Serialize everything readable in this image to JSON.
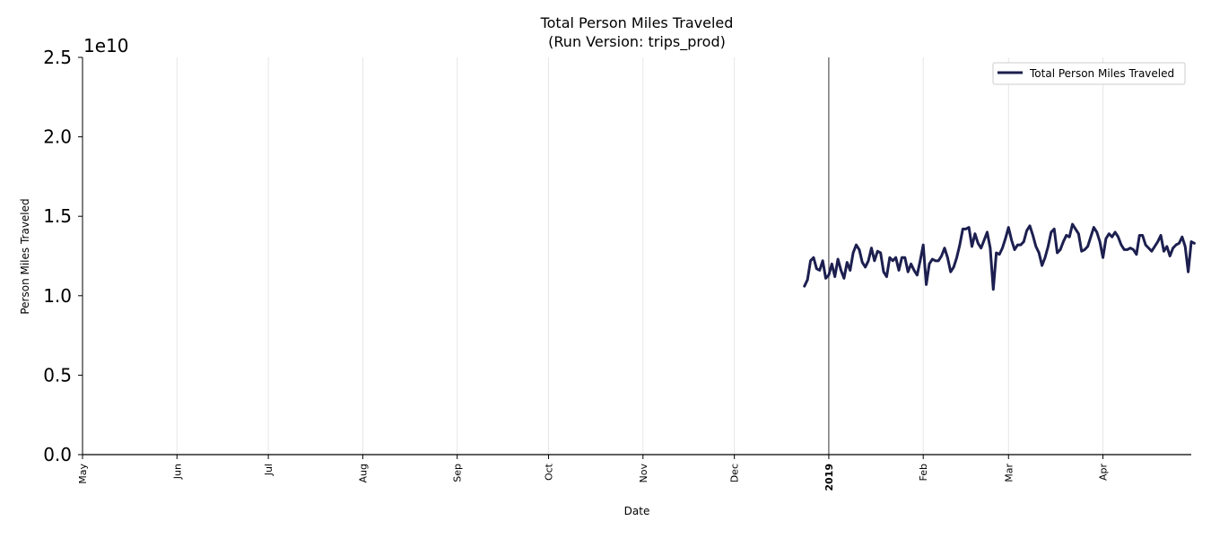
{
  "chart_data": {
    "type": "line",
    "title": "Total Person Miles Traveled",
    "subtitle": "(Run Version: trips_prod)",
    "xlabel": "Date",
    "ylabel": "Person Miles Traveled",
    "y_offset_label": "1e10",
    "y_scale": 10000000000,
    "ylim": [
      0,
      2.5
    ],
    "yticks": [
      "0.0",
      "0.5",
      "1.0",
      "1.5",
      "2.0",
      "2.5"
    ],
    "xlim": [
      "2018-05-01",
      "2019-04-30"
    ],
    "xticks": [
      {
        "label": "May",
        "date": "2018-05-01",
        "bold": false
      },
      {
        "label": "Jun",
        "date": "2018-06-01",
        "bold": false
      },
      {
        "label": "Jul",
        "date": "2018-07-01",
        "bold": false
      },
      {
        "label": "Aug",
        "date": "2018-08-01",
        "bold": false
      },
      {
        "label": "Sep",
        "date": "2018-09-01",
        "bold": false
      },
      {
        "label": "Oct",
        "date": "2018-10-01",
        "bold": false
      },
      {
        "label": "Nov",
        "date": "2018-11-01",
        "bold": false
      },
      {
        "label": "Dec",
        "date": "2018-12-01",
        "bold": false
      },
      {
        "label": "2019",
        "date": "2019-01-01",
        "bold": true
      },
      {
        "label": "Feb",
        "date": "2019-02-01",
        "bold": false
      },
      {
        "label": "Mar",
        "date": "2019-03-01",
        "bold": false
      },
      {
        "label": "Apr",
        "date": "2019-04-01",
        "bold": false
      }
    ],
    "grid": "vertical",
    "year_marker": "2019-01-01",
    "legend_position": "top-right",
    "color": "#1c1f4f",
    "series": [
      {
        "name": "Total Person Miles Traveled",
        "start_date": "2018-12-24",
        "values": [
          1.06,
          1.1,
          1.22,
          1.24,
          1.17,
          1.16,
          1.22,
          1.11,
          1.13,
          1.2,
          1.12,
          1.23,
          1.16,
          1.11,
          1.21,
          1.16,
          1.27,
          1.32,
          1.29,
          1.21,
          1.18,
          1.22,
          1.3,
          1.22,
          1.28,
          1.27,
          1.15,
          1.12,
          1.24,
          1.22,
          1.24,
          1.16,
          1.24,
          1.24,
          1.15,
          1.2,
          1.16,
          1.13,
          1.22,
          1.32,
          1.07,
          1.2,
          1.23,
          1.22,
          1.22,
          1.25,
          1.3,
          1.24,
          1.15,
          1.18,
          1.24,
          1.32,
          1.42,
          1.42,
          1.43,
          1.31,
          1.39,
          1.33,
          1.3,
          1.35,
          1.4,
          1.3,
          1.04,
          1.27,
          1.26,
          1.3,
          1.36,
          1.43,
          1.35,
          1.29,
          1.32,
          1.32,
          1.34,
          1.41,
          1.44,
          1.38,
          1.31,
          1.27,
          1.19,
          1.24,
          1.31,
          1.4,
          1.42,
          1.27,
          1.29,
          1.34,
          1.38,
          1.37,
          1.45,
          1.42,
          1.39,
          1.28,
          1.29,
          1.31,
          1.37,
          1.43,
          1.4,
          1.34,
          1.24,
          1.36,
          1.39,
          1.37,
          1.4,
          1.37,
          1.32,
          1.29,
          1.29,
          1.3,
          1.29,
          1.26,
          1.38,
          1.38,
          1.32,
          1.3,
          1.28,
          1.31,
          1.34,
          1.38,
          1.28,
          1.31,
          1.25,
          1.3,
          1.32,
          1.33,
          1.37,
          1.31,
          1.15,
          1.34,
          1.33
        ]
      }
    ]
  }
}
